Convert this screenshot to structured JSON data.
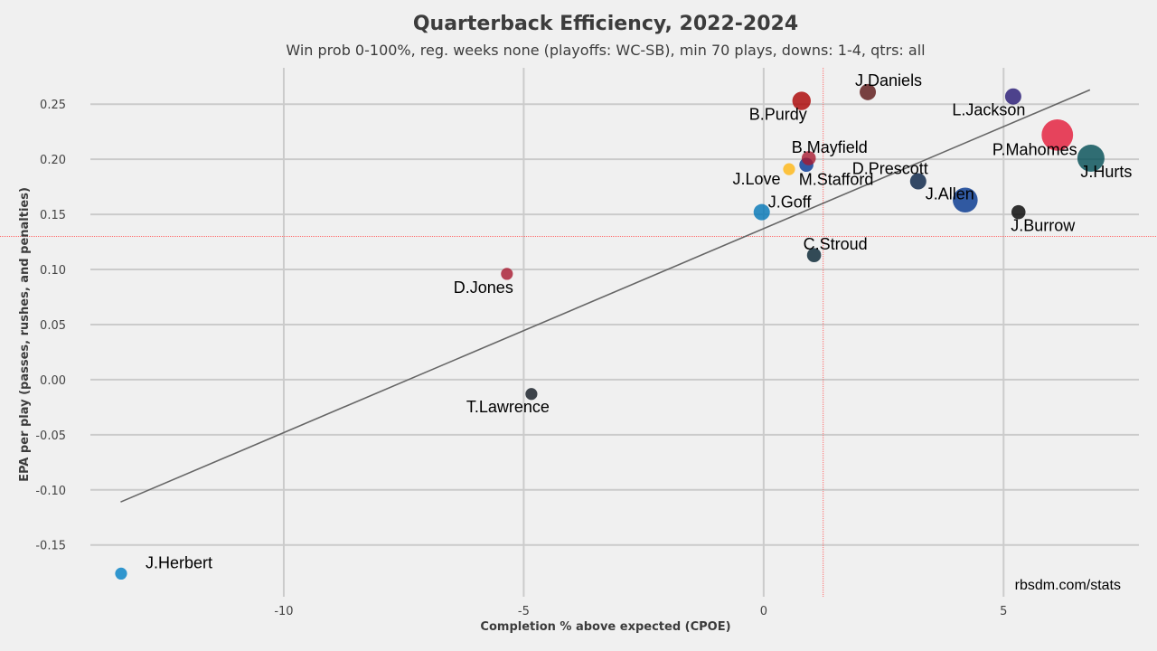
{
  "chart_data": {
    "type": "scatter",
    "title": "Quarterback Efficiency, 2022-2024",
    "subtitle": "Win prob 0-100%, reg. weeks none (playoffs: WC-SB), min 70 plays, downs: 1-4, qtrs: all",
    "xlabel": "Completion % above expected (CPOE)",
    "ylabel": "EPA per play (passes, rushes, and penalties)",
    "xlim": [
      -14.03,
      7.82
    ],
    "ylim": [
      -0.197,
      0.283
    ],
    "xticks": [
      -10,
      -5,
      0,
      5
    ],
    "xtick_labels": [
      "-10",
      "-5",
      "0",
      "5"
    ],
    "yticks": [
      0.25,
      0.2,
      0.15,
      0.1,
      0.05,
      0.0,
      -0.05,
      -0.1,
      -0.15
    ],
    "ytick_labels": [
      "0.25",
      "0.20",
      "0.15",
      "0.10",
      "0.05",
      "0.00",
      "-0.05",
      "-0.10",
      "-0.15"
    ],
    "grid": true,
    "mean_lines": {
      "x": 1.24,
      "y": 0.13,
      "color": "#ff6b6b"
    },
    "regression_line": {
      "x": [
        -13.4,
        6.8
      ],
      "y": [
        -0.111,
        0.263
      ],
      "color": "#666666"
    },
    "credit": "rbsdm.com/stats",
    "points": [
      {
        "name": "J.Herbert",
        "x": -13.39,
        "y": -0.176,
        "size": 3,
        "color": "#0080C6",
        "label_pos": "above-right"
      },
      {
        "name": "T.Lawrence",
        "x": -4.84,
        "y": -0.013,
        "size": 3,
        "color": "#101820",
        "label_pos": "below"
      },
      {
        "name": "D.Jones",
        "x": -5.35,
        "y": 0.096,
        "size": 3,
        "color": "#A71930",
        "label_pos": "below"
      },
      {
        "name": "J.Goff",
        "x": -0.04,
        "y": 0.152,
        "size": 5,
        "color": "#0076B6",
        "label_pos": "above-right"
      },
      {
        "name": "J.Love",
        "x": 0.53,
        "y": 0.191,
        "size": 3,
        "color": "#FFB612",
        "label_pos": "below-left"
      },
      {
        "name": "M.Stafford",
        "x": 0.89,
        "y": 0.195,
        "size": 4,
        "color": "#003594",
        "label_pos": "below-right"
      },
      {
        "name": "B.Mayfield",
        "x": 0.94,
        "y": 0.201,
        "size": 4,
        "color": "#A71930",
        "label_pos": "above-right"
      },
      {
        "name": "B.Purdy",
        "x": 0.79,
        "y": 0.253,
        "size": 6,
        "color": "#AA0000",
        "label_pos": "below-left"
      },
      {
        "name": "J.Daniels",
        "x": 2.17,
        "y": 0.261,
        "size": 5,
        "color": "#5A1414",
        "label_pos": "above-right"
      },
      {
        "name": "C.Stroud",
        "x": 1.05,
        "y": 0.113,
        "size": 4,
        "color": "#03202F",
        "label_pos": "above-right"
      },
      {
        "name": "D.Prescott",
        "x": 3.22,
        "y": 0.18,
        "size": 5,
        "color": "#041E42",
        "label_pos": "above-left"
      },
      {
        "name": "J.Allen",
        "x": 4.2,
        "y": 0.163,
        "size": 9,
        "color": "#00338D",
        "label_pos": "above-left"
      },
      {
        "name": "J.Burrow",
        "x": 5.31,
        "y": 0.152,
        "size": 4,
        "color": "#000000",
        "label_pos": "below"
      },
      {
        "name": "L.Jackson",
        "x": 5.2,
        "y": 0.257,
        "size": 5,
        "color": "#241773",
        "label_pos": "below-left"
      },
      {
        "name": "P.Mahomes",
        "x": 6.12,
        "y": 0.222,
        "size": 12,
        "color": "#E31837",
        "label_pos": "below-left"
      },
      {
        "name": "J.Hurts",
        "x": 6.82,
        "y": 0.201,
        "size": 10,
        "color": "#004C54",
        "label_pos": "below"
      }
    ]
  }
}
